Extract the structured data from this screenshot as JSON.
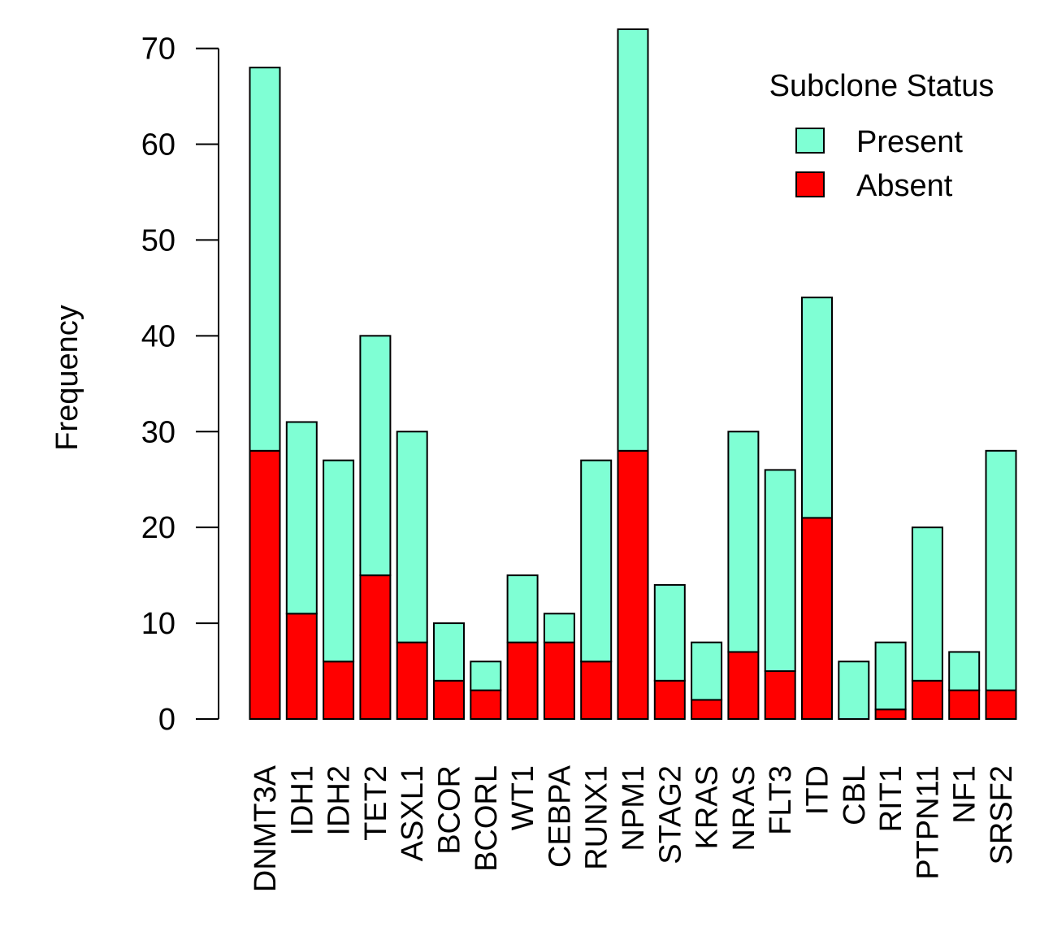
{
  "chart_data": {
    "type": "bar",
    "stacked": true,
    "title": "",
    "xlabel": "",
    "ylabel": "Frequency",
    "ylim": [
      0,
      72
    ],
    "yticks": [
      0,
      10,
      20,
      30,
      40,
      50,
      60,
      70
    ],
    "grid": false,
    "categories": [
      "DNMT3A",
      "IDH1",
      "IDH2",
      "TET2",
      "ASXL1",
      "BCOR",
      "BCORL",
      "WT1",
      "CEBPA",
      "RUNX1",
      "NPM1",
      "STAG2",
      "KRAS",
      "NRAS",
      "FLT3",
      "ITD",
      "CBL",
      "RIT1",
      "PTPN11",
      "NF1",
      "SRSF2"
    ],
    "series": [
      {
        "name": "Absent",
        "color": "#ff0000",
        "values": [
          28,
          11,
          6,
          15,
          8,
          4,
          3,
          8,
          8,
          6,
          28,
          4,
          2,
          7,
          5,
          21,
          0,
          1,
          4,
          3,
          3
        ]
      },
      {
        "name": "Present",
        "color": "#7fffd4",
        "values": [
          40,
          20,
          21,
          25,
          22,
          6,
          3,
          7,
          3,
          21,
          44,
          10,
          6,
          23,
          21,
          23,
          6,
          7,
          16,
          4,
          25
        ]
      }
    ],
    "legend": {
      "title": "Subclone Status",
      "position": "top-right",
      "entries": [
        {
          "label": "Present",
          "color": "#7fffd4"
        },
        {
          "label": "Absent",
          "color": "#ff0000"
        }
      ]
    }
  }
}
